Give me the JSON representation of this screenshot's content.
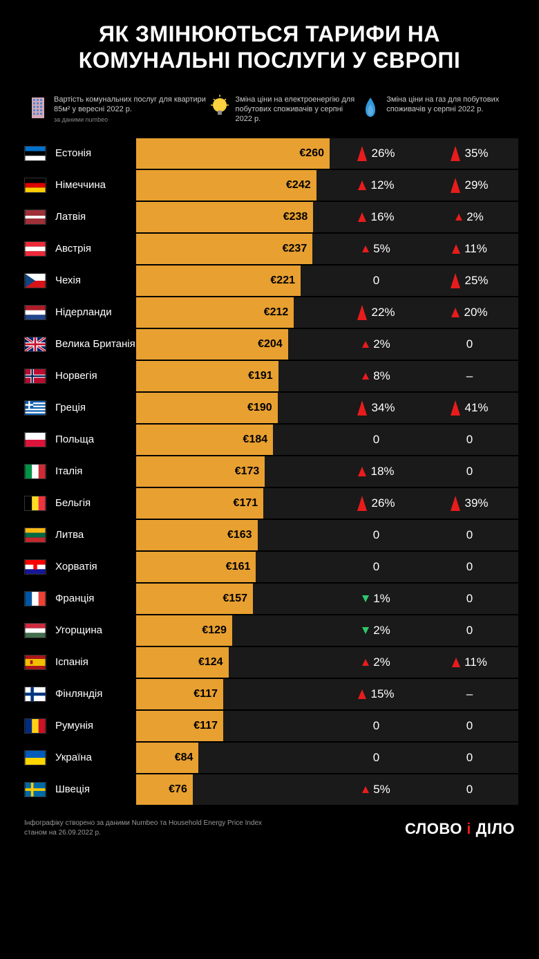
{
  "title": "ЯК ЗМІНЮЮТЬСЯ ТАРИФИ НА КОМУНАЛЬНІ ПОСЛУГИ У ЄВРОПІ",
  "legend": {
    "utility": {
      "text": "Вартість комунальних послуг для квартири 85м² у вересні 2022 р.",
      "source": "за даними numbeo"
    },
    "electricity": {
      "text": "Зміна ціни на електроенергію для побутових споживачів у серпні 2022 р."
    },
    "gas": {
      "text": "Зміна ціни на газ для побутових споживачів у серпні 2022 р."
    }
  },
  "chart": {
    "bar_color": "#e8a030",
    "row_bg": "#1a1a1a",
    "text_color": "#000000",
    "max_value": 260,
    "bar_max_width": 280,
    "currency_prefix": "€"
  },
  "arrows": {
    "up_color": "#e81c1c",
    "down_color": "#2ec96b"
  },
  "rows": [
    {
      "country": "Естонія",
      "flag": [
        "#0072ce",
        "#000000",
        "#ffffff"
      ],
      "flag_type": "h3",
      "value": 260,
      "elec": {
        "dir": "up",
        "size": "big",
        "pct": "26%"
      },
      "gas": {
        "dir": "up",
        "size": "big",
        "pct": "35%"
      }
    },
    {
      "country": "Німеччина",
      "flag": [
        "#000000",
        "#dd0000",
        "#ffce00"
      ],
      "flag_type": "h3",
      "value": 242,
      "elec": {
        "dir": "up",
        "size": "mid",
        "pct": "12%"
      },
      "gas": {
        "dir": "up",
        "size": "big",
        "pct": "29%"
      }
    },
    {
      "country": "Латвія",
      "flag": [
        "#9e3039",
        "#ffffff",
        "#9e3039"
      ],
      "flag_type": "h3-lv",
      "value": 238,
      "elec": {
        "dir": "up",
        "size": "mid",
        "pct": "16%"
      },
      "gas": {
        "dir": "up",
        "size": "small",
        "pct": "2%"
      }
    },
    {
      "country": "Австрія",
      "flag": [
        "#ed2939",
        "#ffffff",
        "#ed2939"
      ],
      "flag_type": "h3",
      "value": 237,
      "elec": {
        "dir": "up",
        "size": "small",
        "pct": "5%"
      },
      "gas": {
        "dir": "up",
        "size": "mid",
        "pct": "11%"
      }
    },
    {
      "country": "Чехія",
      "flag": "cz",
      "flag_type": "cz",
      "value": 221,
      "elec": {
        "dir": "zero",
        "pct": "0"
      },
      "gas": {
        "dir": "up",
        "size": "big",
        "pct": "25%"
      }
    },
    {
      "country": "Нідерланди",
      "flag": [
        "#ae1c28",
        "#ffffff",
        "#21468b"
      ],
      "flag_type": "h3",
      "value": 212,
      "elec": {
        "dir": "up",
        "size": "big",
        "pct": "22%"
      },
      "gas": {
        "dir": "up",
        "size": "mid",
        "pct": "20%"
      }
    },
    {
      "country": "Велика Британія",
      "flag": "uk",
      "flag_type": "uk",
      "value": 204,
      "elec": {
        "dir": "up",
        "size": "small",
        "pct": "2%"
      },
      "gas": {
        "dir": "zero",
        "pct": "0"
      }
    },
    {
      "country": "Норвегія",
      "flag": "no",
      "flag_type": "no",
      "value": 191,
      "elec": {
        "dir": "up",
        "size": "small",
        "pct": "8%"
      },
      "gas": {
        "dir": "dash",
        "pct": "–"
      }
    },
    {
      "country": "Греція",
      "flag": "gr",
      "flag_type": "gr",
      "value": 190,
      "elec": {
        "dir": "up",
        "size": "big",
        "pct": "34%"
      },
      "gas": {
        "dir": "up",
        "size": "big",
        "pct": "41%"
      }
    },
    {
      "country": "Польща",
      "flag": [
        "#ffffff",
        "#dc143c"
      ],
      "flag_type": "h2",
      "value": 184,
      "elec": {
        "dir": "zero",
        "pct": "0"
      },
      "gas": {
        "dir": "zero",
        "pct": "0"
      }
    },
    {
      "country": "Італія",
      "flag": [
        "#009246",
        "#ffffff",
        "#ce2b37"
      ],
      "flag_type": "v3",
      "value": 173,
      "elec": {
        "dir": "up",
        "size": "mid",
        "pct": "18%"
      },
      "gas": {
        "dir": "zero",
        "pct": "0"
      }
    },
    {
      "country": "Бельгія",
      "flag": [
        "#000000",
        "#fdda24",
        "#ef3340"
      ],
      "flag_type": "v3",
      "value": 171,
      "elec": {
        "dir": "up",
        "size": "big",
        "pct": "26%"
      },
      "gas": {
        "dir": "up",
        "size": "big",
        "pct": "39%"
      }
    },
    {
      "country": "Литва",
      "flag": [
        "#fdb913",
        "#006a44",
        "#c1272d"
      ],
      "flag_type": "h3",
      "value": 163,
      "elec": {
        "dir": "zero",
        "pct": "0"
      },
      "gas": {
        "dir": "zero",
        "pct": "0"
      }
    },
    {
      "country": "Хорватія",
      "flag": [
        "#ff0000",
        "#ffffff",
        "#171796"
      ],
      "flag_type": "h3-hr",
      "value": 161,
      "elec": {
        "dir": "zero",
        "pct": "0"
      },
      "gas": {
        "dir": "zero",
        "pct": "0"
      }
    },
    {
      "country": "Франція",
      "flag": [
        "#0055a4",
        "#ffffff",
        "#ef4135"
      ],
      "flag_type": "v3",
      "value": 157,
      "elec": {
        "dir": "down",
        "pct": "1%"
      },
      "gas": {
        "dir": "zero",
        "pct": "0"
      }
    },
    {
      "country": "Угорщина",
      "flag": [
        "#cd2a3e",
        "#ffffff",
        "#436f4d"
      ],
      "flag_type": "h3",
      "value": 129,
      "elec": {
        "dir": "down",
        "pct": "2%"
      },
      "gas": {
        "dir": "zero",
        "pct": "0"
      }
    },
    {
      "country": "Іспанія",
      "flag": "es",
      "flag_type": "es",
      "value": 124,
      "elec": {
        "dir": "up",
        "size": "small",
        "pct": "2%"
      },
      "gas": {
        "dir": "up",
        "size": "mid",
        "pct": "11%"
      }
    },
    {
      "country": "Фінляндія",
      "flag": "fi",
      "flag_type": "fi",
      "value": 117,
      "elec": {
        "dir": "up",
        "size": "mid",
        "pct": "15%"
      },
      "gas": {
        "dir": "dash",
        "pct": "–"
      }
    },
    {
      "country": "Румунія",
      "flag": [
        "#002b7f",
        "#fcd116",
        "#ce1126"
      ],
      "flag_type": "v3",
      "value": 117,
      "elec": {
        "dir": "zero",
        "pct": "0"
      },
      "gas": {
        "dir": "zero",
        "pct": "0"
      }
    },
    {
      "country": "Україна",
      "flag": [
        "#005bbb",
        "#ffd500"
      ],
      "flag_type": "h2",
      "value": 84,
      "elec": {
        "dir": "zero",
        "pct": "0"
      },
      "gas": {
        "dir": "zero",
        "pct": "0"
      }
    },
    {
      "country": "Швеція",
      "flag": "se",
      "flag_type": "se",
      "value": 76,
      "elec": {
        "dir": "up",
        "size": "small",
        "pct": "5%"
      },
      "gas": {
        "dir": "zero",
        "pct": "0"
      }
    }
  ],
  "footer": {
    "text": "Інфографіку створено за даними Numbeo та Household Energy Price Index\nстаном на 26.09.2022 р.",
    "logo": "СЛОВО і ДІЛО"
  }
}
